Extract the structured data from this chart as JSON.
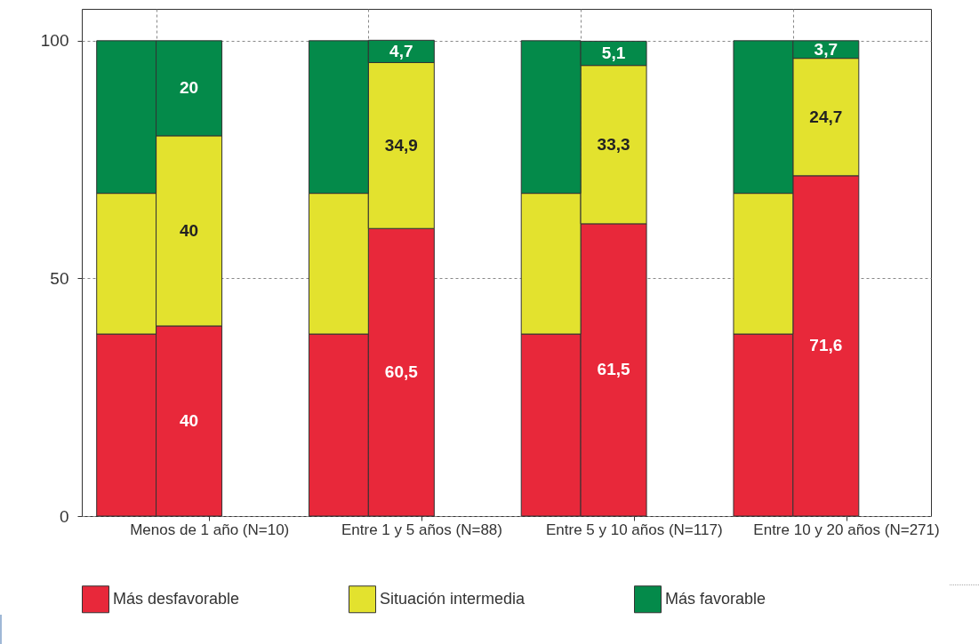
{
  "chart_data": {
    "type": "bar",
    "stacked": true,
    "categories": [
      null,
      "Menos de 1 año (N=10)",
      null,
      "Entre 1 y 5 años (N=88)",
      null,
      "Entre 5 y 10 años (N=117)",
      null,
      "Entre 10 y 20 años (N=271)"
    ],
    "series": [
      {
        "name": "Más desfavorable",
        "color": "#e8283a",
        "values": [
          38.3,
          40,
          38.3,
          60.5,
          38.3,
          61.5,
          38.3,
          71.6
        ],
        "value_labels": [
          null,
          "40",
          null,
          "60,5",
          null,
          "61,5",
          null,
          "71,6"
        ]
      },
      {
        "name": "Situación intermedia",
        "color": "#e3e22e",
        "values": [
          29.6,
          40,
          29.6,
          34.9,
          29.6,
          33.3,
          29.6,
          24.7
        ],
        "value_labels": [
          null,
          "40",
          null,
          "34,9",
          null,
          "33,3",
          null,
          "24,7"
        ]
      },
      {
        "name": "Más favorable",
        "color": "#048a4a",
        "values": [
          32.1,
          20,
          32.1,
          4.7,
          32.1,
          5.1,
          32.1,
          3.7
        ],
        "value_labels": [
          null,
          "20",
          null,
          "4,7",
          null,
          "5,1",
          null,
          "3,7"
        ]
      }
    ],
    "ylim": [
      0,
      106.7
    ],
    "yticks": [
      0,
      50,
      100
    ],
    "grid": true,
    "legend": "bottom"
  }
}
